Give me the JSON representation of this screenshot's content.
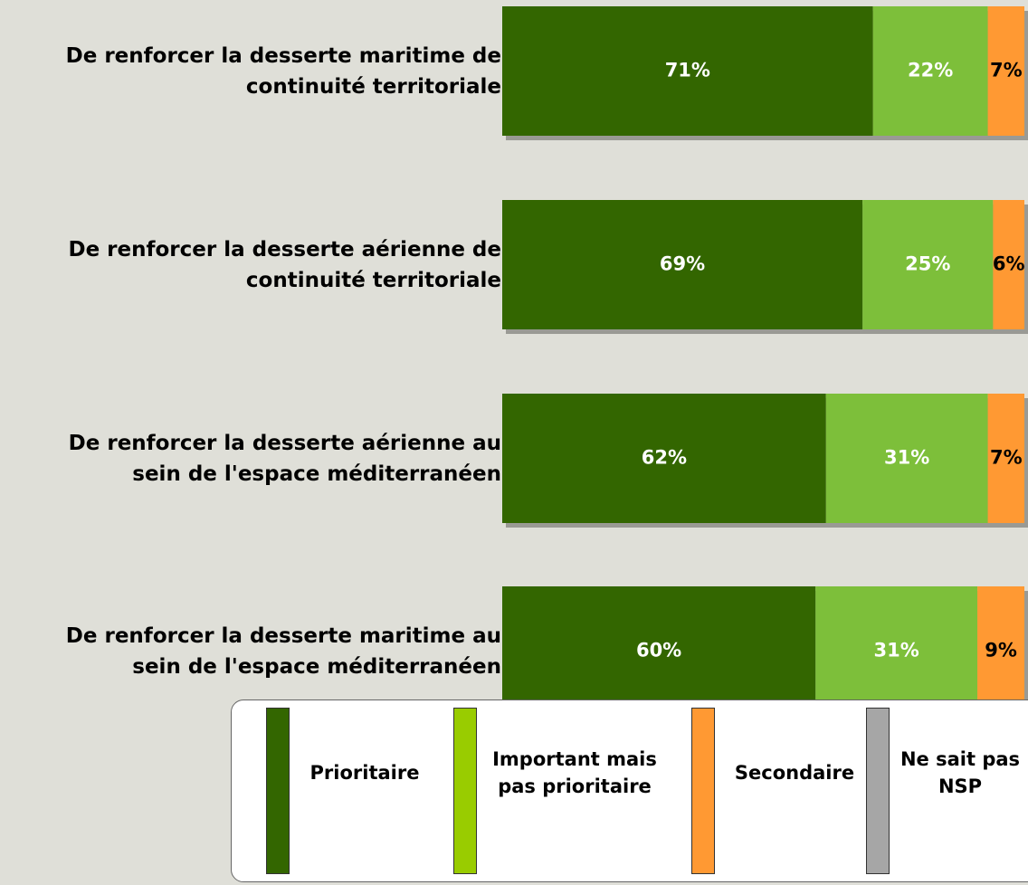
{
  "chart_data": {
    "type": "stacked-barh",
    "categories": [
      [
        "De renforcer la desserte maritime de",
        "continuité territoriale"
      ],
      [
        "De renforcer la desserte aérienne de",
        "continuité territoriale"
      ],
      [
        "De renforcer la desserte aérienne au",
        "sein de l'espace méditerranéen"
      ],
      [
        "De renforcer la desserte maritime au",
        "sein de l'espace méditerranéen"
      ]
    ],
    "xlim": [
      0,
      100
    ],
    "legend": "bottom",
    "series": [
      {
        "name": "Prioritaire",
        "color": "#336600",
        "legend_color": "#336600",
        "label_color": "#ffffff",
        "values": [
          71,
          69,
          62,
          60
        ],
        "value_labels": [
          "71%",
          "69%",
          "62%",
          "60%"
        ]
      },
      {
        "name": "Important mais pas prioritaire",
        "color": "#7dbf3a",
        "legend_color": "#99cc00",
        "label_color": "#ffffff",
        "values": [
          22,
          25,
          31,
          31
        ],
        "value_labels": [
          "22%",
          "25%",
          "31%",
          "31%"
        ]
      },
      {
        "name": "Secondaire",
        "color": "#ff9933",
        "legend_color": "#ff9933",
        "label_color": "#000000",
        "values": [
          7,
          6,
          7,
          9
        ],
        "value_labels": [
          "7%",
          "6%",
          "7%",
          "9%"
        ]
      },
      {
        "name": "Ne sait pas NSP",
        "color": "#a6a6a6",
        "legend_color": "#a6a6a6",
        "label_color": "#000000",
        "values": [
          0,
          0,
          0,
          0
        ]
      }
    ]
  }
}
